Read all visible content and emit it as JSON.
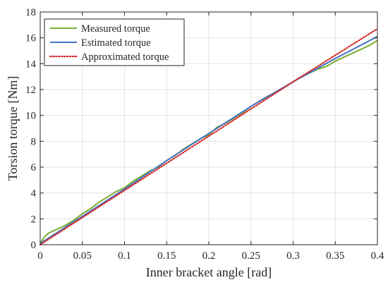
{
  "chart_data": {
    "type": "line",
    "title": "",
    "xlabel": "Inner bracket angle [rad]",
    "ylabel": "Torsion torque [Nm]",
    "xlim": [
      0,
      0.4
    ],
    "ylim": [
      0,
      18
    ],
    "xticks": [
      0,
      0.05,
      0.1,
      0.15,
      0.2,
      0.25,
      0.3,
      0.35,
      0.4
    ],
    "xtick_labels": [
      "0",
      "0.05",
      "0.1",
      "0.15",
      "0.2",
      "0.25",
      "0.3",
      "0.35",
      "0.4"
    ],
    "yticks": [
      0,
      2,
      4,
      6,
      8,
      10,
      12,
      14,
      16,
      18
    ],
    "ytick_labels": [
      "0",
      "2",
      "4",
      "6",
      "8",
      "10",
      "12",
      "14",
      "16",
      "18"
    ],
    "grid": true,
    "legend_position": "top-left",
    "series": [
      {
        "name": "Measured torque",
        "color": "#77ac30",
        "style": "solid",
        "x": [
          0,
          0.005,
          0.01,
          0.02,
          0.03,
          0.04,
          0.05,
          0.06,
          0.07,
          0.08,
          0.09,
          0.1,
          0.11,
          0.12,
          0.13,
          0.14,
          0.15,
          0.16,
          0.17,
          0.18,
          0.19,
          0.2,
          0.21,
          0.22,
          0.23,
          0.24,
          0.25,
          0.26,
          0.27,
          0.28,
          0.29,
          0.3,
          0.31,
          0.32,
          0.33,
          0.34,
          0.35,
          0.36,
          0.37,
          0.38,
          0.39,
          0.4
        ],
        "values": [
          0.1,
          0.6,
          0.9,
          1.2,
          1.5,
          1.9,
          2.4,
          2.8,
          3.3,
          3.7,
          4.1,
          4.4,
          4.9,
          5.3,
          5.7,
          6.0,
          6.5,
          6.9,
          7.4,
          7.8,
          8.2,
          8.5,
          9.1,
          9.4,
          9.8,
          10.2,
          10.7,
          11.1,
          11.5,
          11.8,
          12.2,
          12.6,
          13.0,
          13.3,
          13.6,
          13.8,
          14.2,
          14.5,
          14.8,
          15.1,
          15.4,
          15.8
        ]
      },
      {
        "name": "Estimated torque",
        "color": "#4472c4",
        "style": "solid",
        "x": [
          0,
          0.05,
          0.1,
          0.15,
          0.2,
          0.25,
          0.3,
          0.35,
          0.4
        ],
        "values": [
          0.1,
          2.2,
          4.3,
          6.5,
          8.6,
          10.7,
          12.6,
          14.4,
          16.1
        ]
      },
      {
        "name": "Approximated torque",
        "color": "#d62728",
        "style": "dotted",
        "x": [
          0,
          0.1,
          0.2,
          0.3,
          0.4
        ],
        "values": [
          0,
          4.2,
          8.4,
          12.6,
          16.7
        ]
      }
    ]
  }
}
